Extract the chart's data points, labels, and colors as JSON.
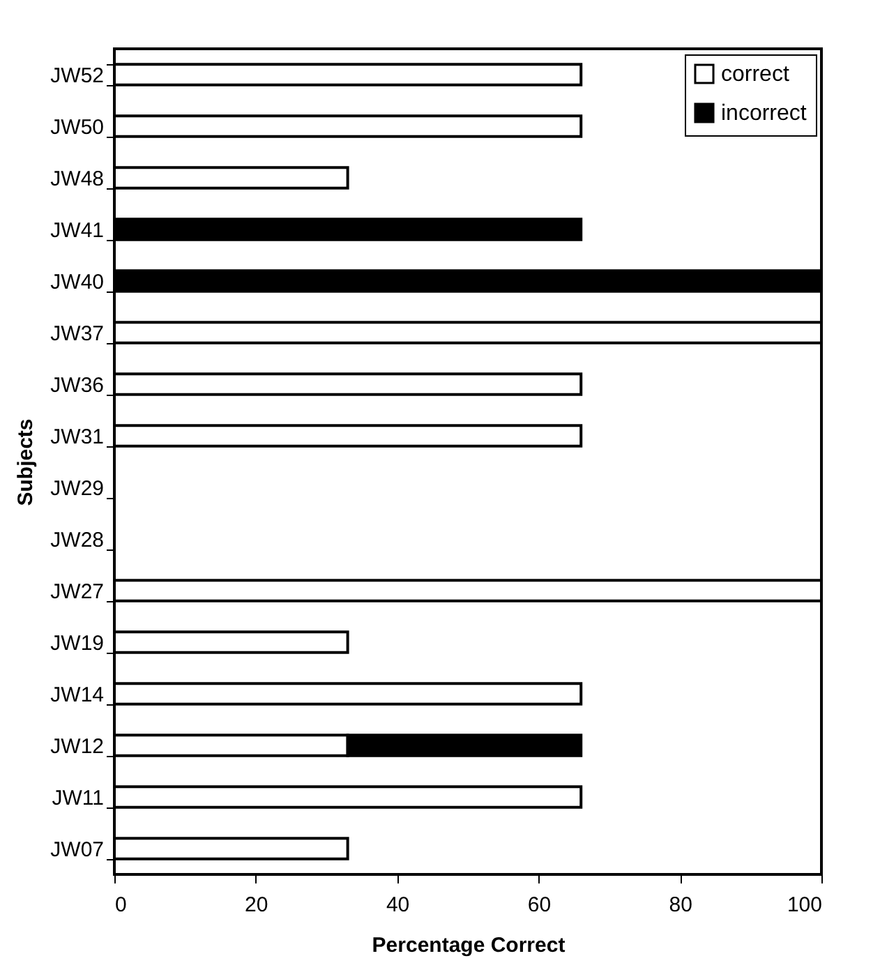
{
  "chart_data": {
    "type": "bar",
    "orientation": "horizontal",
    "stacked": true,
    "xlabel": "Percentage Correct",
    "ylabel": "Subjects",
    "categories": [
      "JW52",
      "JW50",
      "JW48",
      "JW41",
      "JW40",
      "JW37",
      "JW36",
      "JW31",
      "JW29",
      "JW28",
      "JW27",
      "JW19",
      "JW14",
      "JW12",
      "JW11",
      "JW07"
    ],
    "series": [
      {
        "name": "correct",
        "color": "#ffffff",
        "values": [
          66,
          66,
          33,
          null,
          null,
          100,
          66,
          66,
          null,
          null,
          100,
          33,
          66,
          33,
          66,
          33
        ]
      },
      {
        "name": "incorrect",
        "color": "#000000",
        "values": [
          null,
          null,
          null,
          66,
          100,
          null,
          null,
          null,
          null,
          null,
          null,
          null,
          null,
          33,
          null,
          null
        ]
      }
    ],
    "xlim": [
      0,
      100
    ],
    "xticks": [
      0,
      20,
      40,
      60,
      80,
      100
    ],
    "grid": false,
    "legend": "top right"
  }
}
